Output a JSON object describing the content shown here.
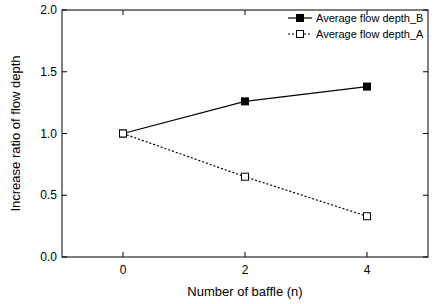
{
  "chart_data": {
    "type": "line",
    "x_label": "Number of baffle (n)",
    "y_label": "Increase ratio of flow depth",
    "x": [
      0,
      2,
      4
    ],
    "series": [
      {
        "name": "Average flow depth_B",
        "color": "#000000",
        "marker": "square-filled",
        "line_style": "solid",
        "values": [
          1.0,
          1.26,
          1.38
        ]
      },
      {
        "name": "Average flow depth_A",
        "color": "#000000",
        "marker": "square-open",
        "line_style": "dotted",
        "values": [
          1.0,
          0.65,
          0.33
        ]
      }
    ],
    "xlim": [
      -1,
      5
    ],
    "xticks": [
      0,
      2,
      4
    ],
    "ylim": [
      0,
      2
    ],
    "yticks": [
      {
        "value": 0,
        "label": "0.0"
      },
      {
        "value": 0.5,
        "label": "0.5"
      },
      {
        "value": 1,
        "label": "1.0"
      },
      {
        "value": 1.5,
        "label": "1.5"
      },
      {
        "value": 2,
        "label": "2.0"
      }
    ],
    "grid": false,
    "legend": "upper right"
  }
}
